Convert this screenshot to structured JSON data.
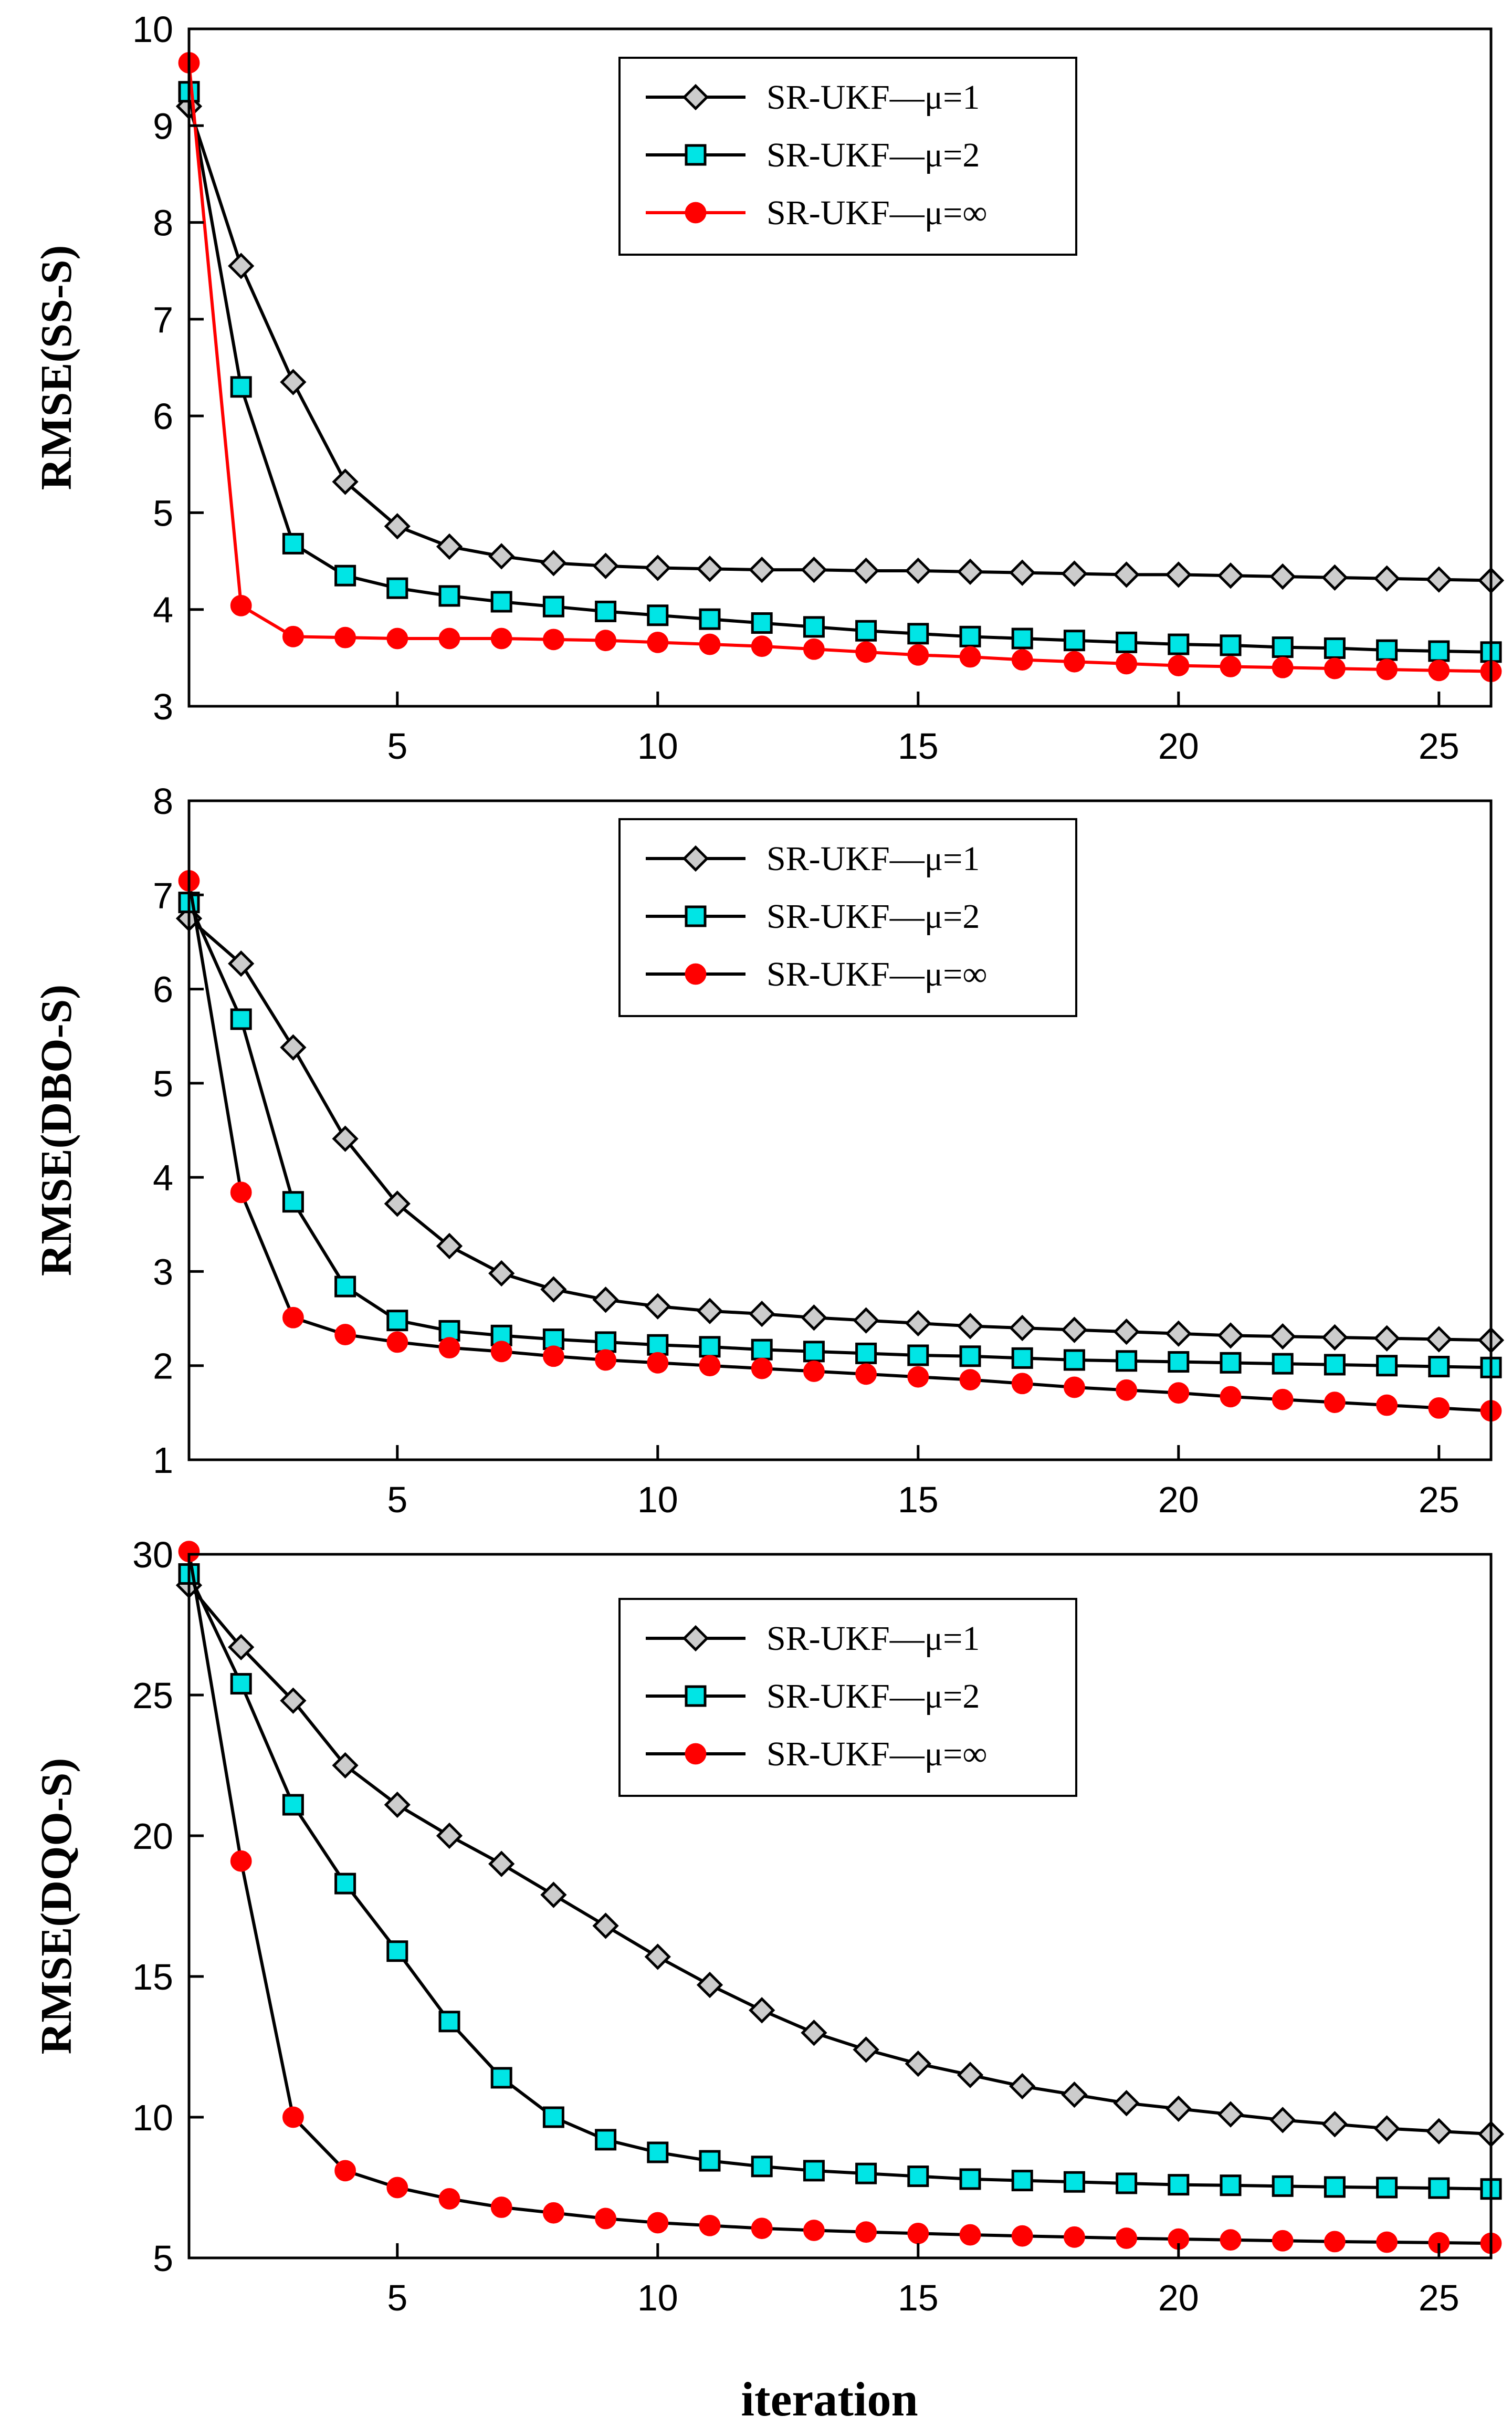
{
  "figure": {
    "xlabel": "iteration"
  },
  "chart_data": [
    {
      "type": "line",
      "ylabel": "RMSE(SS-S)",
      "xlabel": "",
      "xlim": [
        1,
        26
      ],
      "ylim": [
        3,
        10
      ],
      "xticks": [
        5,
        10,
        15,
        20,
        25
      ],
      "yticks": [
        3,
        4,
        5,
        6,
        7,
        8,
        9,
        10
      ],
      "legend": "top-center",
      "grid": false,
      "x": [
        1,
        2,
        3,
        4,
        5,
        6,
        7,
        8,
        9,
        10,
        11,
        12,
        13,
        14,
        15,
        16,
        17,
        18,
        19,
        20,
        21,
        22,
        23,
        24,
        25,
        26
      ],
      "series": [
        {
          "name": "SR-UKF—μ=1",
          "marker": "diamond",
          "color": "#cccccc",
          "line_color": "#000000",
          "values": [
            9.2,
            7.55,
            6.35,
            5.32,
            4.86,
            4.65,
            4.55,
            4.48,
            4.45,
            4.43,
            4.42,
            4.41,
            4.41,
            4.4,
            4.4,
            4.39,
            4.38,
            4.37,
            4.36,
            4.36,
            4.35,
            4.34,
            4.33,
            4.32,
            4.31,
            4.3
          ]
        },
        {
          "name": "SR-UKF—μ=2",
          "marker": "square",
          "color": "#00e5e5",
          "line_color": "#000000",
          "values": [
            9.35,
            6.3,
            4.68,
            4.35,
            4.22,
            4.14,
            4.08,
            4.03,
            3.98,
            3.94,
            3.9,
            3.86,
            3.82,
            3.78,
            3.75,
            3.72,
            3.7,
            3.68,
            3.66,
            3.64,
            3.63,
            3.61,
            3.6,
            3.58,
            3.57,
            3.56
          ]
        },
        {
          "name": "SR-UKF—μ=∞",
          "marker": "circle",
          "color": "#ff0000",
          "line_color": "#ff0000",
          "values": [
            9.65,
            4.04,
            3.72,
            3.71,
            3.7,
            3.7,
            3.7,
            3.69,
            3.68,
            3.66,
            3.64,
            3.62,
            3.59,
            3.56,
            3.53,
            3.51,
            3.48,
            3.46,
            3.44,
            3.42,
            3.41,
            3.4,
            3.39,
            3.38,
            3.37,
            3.36
          ]
        }
      ]
    },
    {
      "type": "line",
      "ylabel": "RMSE(DBO-S)",
      "xlabel": "",
      "xlim": [
        1,
        26
      ],
      "ylim": [
        1,
        8
      ],
      "xticks": [
        5,
        10,
        15,
        20,
        25
      ],
      "yticks": [
        1,
        2,
        3,
        4,
        5,
        6,
        7,
        8
      ],
      "legend": "top-center",
      "grid": false,
      "x": [
        1,
        2,
        3,
        4,
        5,
        6,
        7,
        8,
        9,
        10,
        11,
        12,
        13,
        14,
        15,
        16,
        17,
        18,
        19,
        20,
        21,
        22,
        23,
        24,
        25,
        26
      ],
      "series": [
        {
          "name": "SR-UKF—μ=1",
          "marker": "diamond",
          "color": "#cccccc",
          "line_color": "#000000",
          "values": [
            6.75,
            6.27,
            5.38,
            4.41,
            3.72,
            3.27,
            2.98,
            2.81,
            2.7,
            2.63,
            2.58,
            2.55,
            2.51,
            2.48,
            2.45,
            2.42,
            2.4,
            2.38,
            2.36,
            2.34,
            2.32,
            2.31,
            2.3,
            2.29,
            2.28,
            2.27
          ]
        },
        {
          "name": "SR-UKF—μ=2",
          "marker": "square",
          "color": "#00e5e5",
          "line_color": "#000000",
          "values": [
            6.92,
            5.68,
            3.74,
            2.84,
            2.48,
            2.37,
            2.32,
            2.28,
            2.25,
            2.22,
            2.2,
            2.17,
            2.15,
            2.13,
            2.11,
            2.1,
            2.08,
            2.06,
            2.05,
            2.04,
            2.03,
            2.02,
            2.01,
            2.0,
            1.99,
            1.98
          ]
        },
        {
          "name": "SR-UKF—μ=∞",
          "marker": "circle",
          "color": "#ff0000",
          "line_color": "#000000",
          "values": [
            7.15,
            3.84,
            2.51,
            2.33,
            2.25,
            2.19,
            2.15,
            2.1,
            2.06,
            2.03,
            2.0,
            1.97,
            1.94,
            1.91,
            1.88,
            1.85,
            1.81,
            1.77,
            1.74,
            1.71,
            1.67,
            1.64,
            1.61,
            1.58,
            1.55,
            1.52
          ]
        }
      ]
    },
    {
      "type": "line",
      "ylabel": "RMSE(DQO-S)",
      "xlabel": "iteration",
      "xlim": [
        1,
        26
      ],
      "ylim": [
        5,
        30
      ],
      "xticks": [
        5,
        10,
        15,
        20,
        25
      ],
      "yticks": [
        5,
        10,
        15,
        20,
        25,
        30
      ],
      "legend": "top-center",
      "grid": false,
      "x": [
        1,
        2,
        3,
        4,
        5,
        6,
        7,
        8,
        9,
        10,
        11,
        12,
        13,
        14,
        15,
        16,
        17,
        18,
        19,
        20,
        21,
        22,
        23,
        24,
        25,
        26
      ],
      "series": [
        {
          "name": "SR-UKF—μ=1",
          "marker": "diamond",
          "color": "#cccccc",
          "line_color": "#000000",
          "values": [
            28.9,
            26.7,
            24.8,
            22.5,
            21.1,
            20.0,
            19.0,
            17.9,
            16.8,
            15.7,
            14.7,
            13.8,
            13.0,
            12.4,
            11.9,
            11.5,
            11.1,
            10.8,
            10.5,
            10.3,
            10.1,
            9.9,
            9.75,
            9.6,
            9.5,
            9.4
          ]
        },
        {
          "name": "SR-UKF—μ=2",
          "marker": "square",
          "color": "#00e5e5",
          "line_color": "#000000",
          "values": [
            29.3,
            25.4,
            21.1,
            18.3,
            15.9,
            13.4,
            11.4,
            10.0,
            9.2,
            8.75,
            8.45,
            8.25,
            8.1,
            8.0,
            7.9,
            7.8,
            7.75,
            7.7,
            7.65,
            7.6,
            7.58,
            7.55,
            7.52,
            7.5,
            7.48,
            7.45
          ]
        },
        {
          "name": "SR-UKF—μ=∞",
          "marker": "circle",
          "color": "#ff0000",
          "line_color": "#000000",
          "values": [
            30.1,
            19.1,
            10.0,
            8.1,
            7.5,
            7.1,
            6.8,
            6.6,
            6.4,
            6.25,
            6.15,
            6.05,
            5.98,
            5.92,
            5.87,
            5.82,
            5.78,
            5.74,
            5.7,
            5.67,
            5.64,
            5.61,
            5.58,
            5.56,
            5.54,
            5.52
          ]
        }
      ]
    }
  ]
}
